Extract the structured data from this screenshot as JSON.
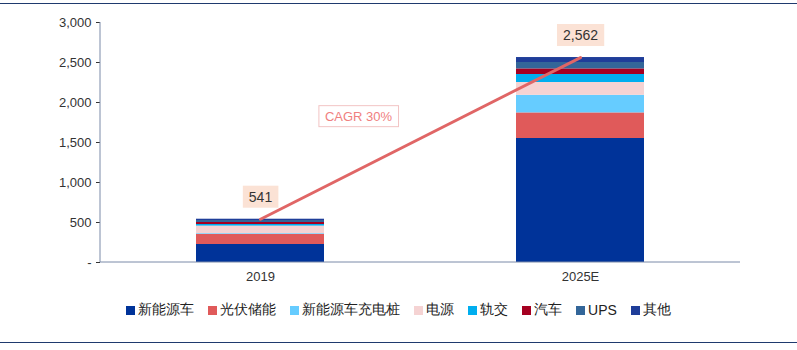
{
  "chart_data": {
    "type": "bar",
    "stacked": true,
    "legend": "bottom",
    "grid": false,
    "categories": [
      "2019",
      "2025E"
    ],
    "series": [
      {
        "name": "新能源车",
        "color": "#003399",
        "values": [
          225,
          1550
        ]
      },
      {
        "name": "光伏储能",
        "color": "#e05a5a",
        "values": [
          125,
          320
        ]
      },
      {
        "name": "新能源车充电桩",
        "color": "#66ccff",
        "values": [
          10,
          220
        ]
      },
      {
        "name": "电源",
        "color": "#f5d3d3",
        "values": [
          95,
          160
        ]
      },
      {
        "name": "轨交",
        "color": "#00aeef",
        "values": [
          20,
          100
        ]
      },
      {
        "name": "汽车",
        "color": "#a50021",
        "values": [
          25,
          70
        ]
      },
      {
        "name": "UPS",
        "color": "#336699",
        "values": [
          25,
          80
        ]
      },
      {
        "name": "其他",
        "color": "#1f3d99",
        "values": [
          16,
          62
        ]
      }
    ],
    "totals": [
      541,
      2562
    ],
    "total_labels": [
      "541",
      "2,562"
    ],
    "annotation": "CAGR 30%",
    "ylim": [
      0,
      3000
    ],
    "yticks": [
      {
        "value": 0,
        "label": "-"
      },
      500,
      {
        "value": 1000,
        "label": "1,000"
      },
      {
        "value": 1500,
        "label": "1,500"
      },
      {
        "value": 2000,
        "label": "2,000"
      },
      {
        "value": 2500,
        "label": "2,500"
      },
      {
        "value": 3000,
        "label": "3,000"
      }
    ]
  }
}
